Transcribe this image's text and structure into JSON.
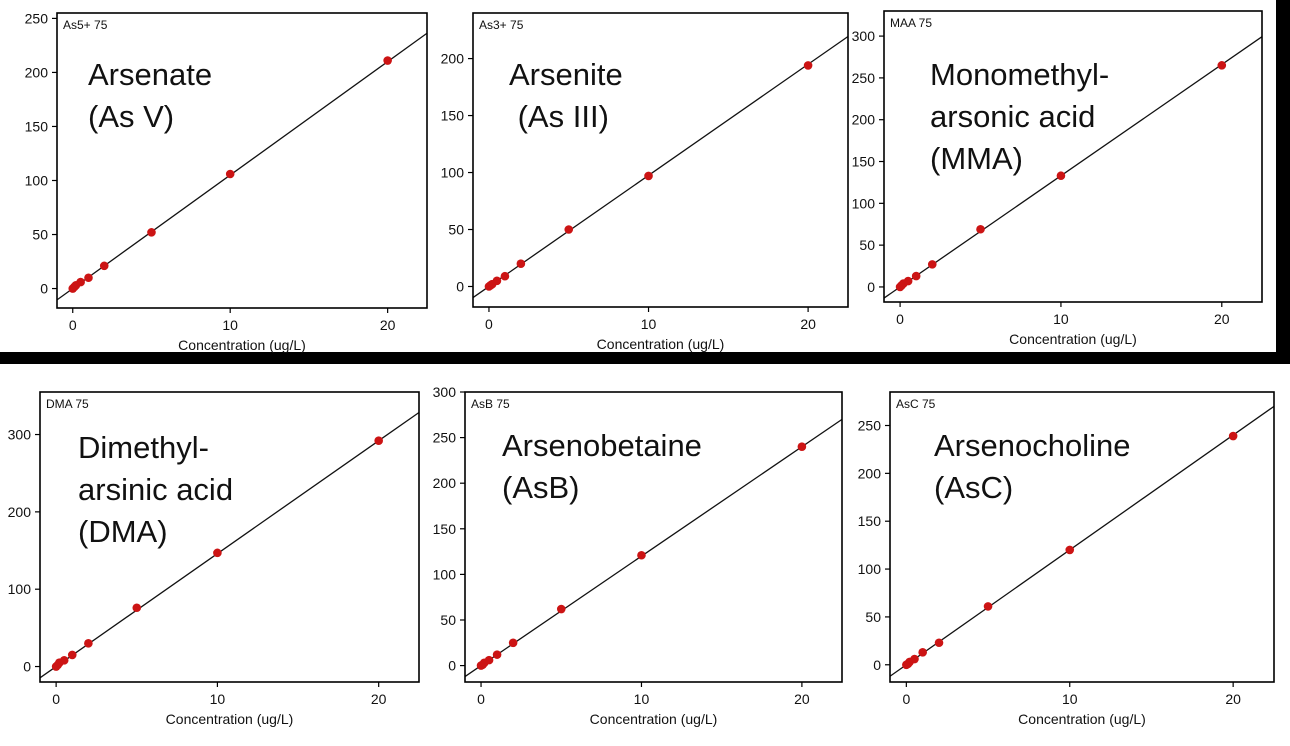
{
  "colors": {
    "point": "#cc1414",
    "line": "#111111",
    "band": "#000000"
  },
  "chart_data": [
    {
      "type": "scatter",
      "id": "as5",
      "tag": "As5+ 75",
      "title_lines": [
        "Arsenate",
        "(As V)"
      ],
      "xlabel": "Concentration (ug/L)",
      "ylabel": "",
      "xlim": [
        -1,
        22.5
      ],
      "ylim": [
        -18,
        255
      ],
      "xticks": [
        0,
        10,
        20
      ],
      "yticks": [
        0,
        50,
        100,
        150,
        200,
        250
      ],
      "x": [
        0,
        0.1,
        0.2,
        0.5,
        1,
        2,
        5,
        10,
        20
      ],
      "y": [
        0,
        1.5,
        3,
        6,
        10,
        21,
        52,
        106,
        211
      ],
      "fit": {
        "slope": 10.5,
        "intercept": 0
      }
    },
    {
      "type": "scatter",
      "id": "as3",
      "tag": "As3+ 75",
      "title_lines": [
        "Arsenite",
        " (As III)"
      ],
      "xlabel": "Concentration (ug/L)",
      "ylabel": "",
      "xlim": [
        -1,
        22.5
      ],
      "ylim": [
        -18,
        240
      ],
      "xticks": [
        0,
        10,
        20
      ],
      "yticks": [
        0,
        50,
        100,
        150,
        200
      ],
      "x": [
        0,
        0.1,
        0.2,
        0.5,
        1,
        2,
        5,
        10,
        20
      ],
      "y": [
        0,
        1,
        2,
        5,
        9,
        20,
        50,
        97,
        194
      ],
      "fit": {
        "slope": 9.75,
        "intercept": 0
      }
    },
    {
      "type": "scatter",
      "id": "mma",
      "tag": "MAA 75",
      "title_lines": [
        "Monomethyl-",
        "arsonic acid",
        "(MMA)"
      ],
      "xlabel": "Concentration (ug/L)",
      "ylabel": "",
      "xlim": [
        -1,
        22.5
      ],
      "ylim": [
        -18,
        330
      ],
      "xticks": [
        0,
        10,
        20
      ],
      "yticks": [
        0,
        50,
        100,
        150,
        200,
        250,
        300
      ],
      "x": [
        0,
        0.1,
        0.2,
        0.5,
        1,
        2,
        5,
        10,
        20
      ],
      "y": [
        0,
        2,
        4,
        7,
        13,
        27,
        69,
        133,
        265
      ],
      "fit": {
        "slope": 13.3,
        "intercept": 0
      }
    },
    {
      "type": "scatter",
      "id": "dma",
      "tag": "DMA 75",
      "title_lines": [
        "Dimethyl-",
        "arsinic acid",
        "(DMA)"
      ],
      "xlabel": "Concentration (ug/L)",
      "ylabel": "",
      "xlim": [
        -1,
        22.5
      ],
      "ylim": [
        -20,
        355
      ],
      "xticks": [
        0,
        10,
        20
      ],
      "yticks": [
        0,
        100,
        200,
        300
      ],
      "x": [
        0,
        0.1,
        0.2,
        0.5,
        1,
        2,
        5,
        10,
        20
      ],
      "y": [
        0,
        2,
        5,
        8,
        15,
        30,
        76,
        147,
        292
      ],
      "fit": {
        "slope": 14.6,
        "intercept": 0
      }
    },
    {
      "type": "scatter",
      "id": "asb",
      "tag": "AsB 75",
      "title_lines": [
        "Arsenobetaine",
        "(AsB)"
      ],
      "xlabel": "Concentration (ug/L)",
      "ylabel": "",
      "xlim": [
        -1,
        22.5
      ],
      "ylim": [
        -18,
        300
      ],
      "xticks": [
        0,
        10,
        20
      ],
      "yticks": [
        0,
        50,
        100,
        150,
        200,
        250,
        300
      ],
      "x": [
        0,
        0.1,
        0.2,
        0.5,
        1,
        2,
        5,
        10,
        20
      ],
      "y": [
        0,
        1,
        3,
        6,
        12,
        25,
        62,
        121,
        240
      ],
      "fit": {
        "slope": 12,
        "intercept": 0
      }
    },
    {
      "type": "scatter",
      "id": "asc",
      "tag": "AsC 75",
      "title_lines": [
        "Arsenocholine",
        "(AsC)"
      ],
      "xlabel": "Concentration (ug/L)",
      "ylabel": "",
      "xlim": [
        -1,
        22.5
      ],
      "ylim": [
        -18,
        285
      ],
      "xticks": [
        0,
        10,
        20
      ],
      "yticks": [
        0,
        50,
        100,
        150,
        200,
        250
      ],
      "x": [
        0,
        0.1,
        0.2,
        0.5,
        1,
        2,
        5,
        10,
        20
      ],
      "y": [
        0,
        1,
        3,
        6,
        13,
        23,
        61,
        120,
        239
      ],
      "fit": {
        "slope": 12,
        "intercept": 0
      }
    }
  ]
}
